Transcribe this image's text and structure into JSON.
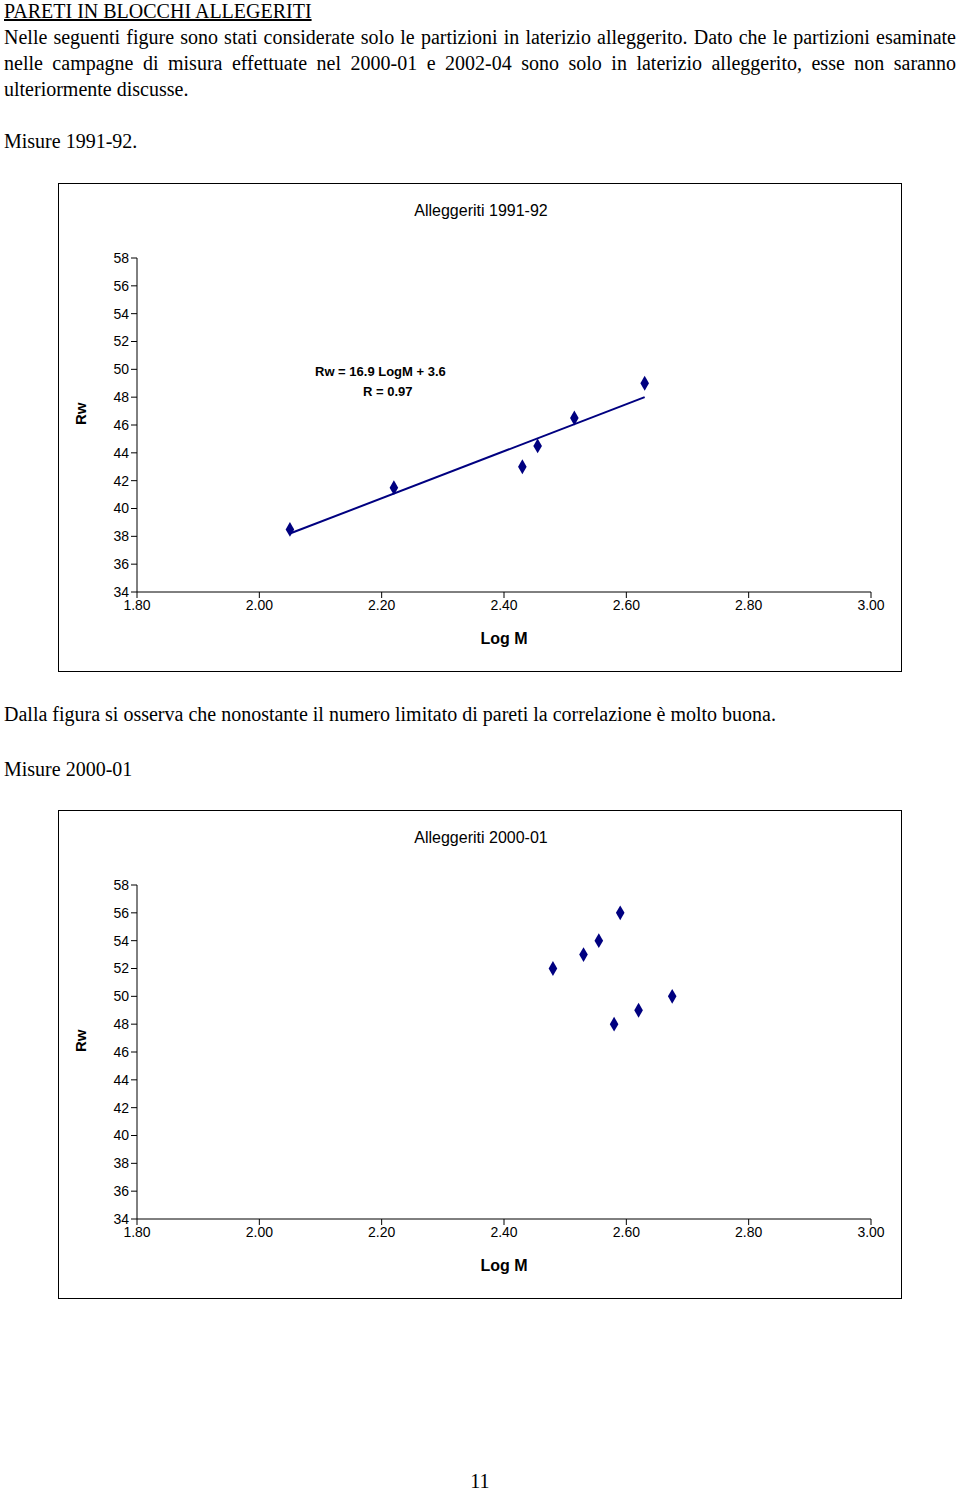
{
  "heading": "PARETI IN BLOCCHI ALLEGERITI",
  "intro": "Nelle seguenti figure sono stati considerate solo le partizioni in laterizio alleggerito. Dato che le partizioni esaminate nelle campagne di misura effettuate nel 2000-01 e 2002-04 sono solo in laterizio alleggerito, esse non saranno ulteriormente discusse.",
  "section_1": "Misure 1991-92.",
  "comment": "Dalla figura si osserva che nonostante il numero limitato di pareti la correlazione è molto buona.",
  "section_2": "Misure 2000-01",
  "page_number": "11",
  "chart_data": [
    {
      "type": "scatter",
      "title": "Alleggeriti 1991-92",
      "x_label": "Log M",
      "y_label": "Rw",
      "x": [
        2.05,
        2.22,
        2.43,
        2.455,
        2.515,
        2.63
      ],
      "values": [
        38.5,
        41.5,
        43,
        44.5,
        46.5,
        49
      ],
      "color": "#000080",
      "marker": "diamond",
      "xlim": [
        1.8,
        3.0
      ],
      "xticks": [
        {
          "value": 1.8,
          "label": "1.80"
        },
        {
          "value": 2.0,
          "label": "2.00"
        },
        {
          "value": 2.2,
          "label": "2.20"
        },
        {
          "value": 2.4,
          "label": "2.40"
        },
        {
          "value": 2.6,
          "label": "2.60"
        },
        {
          "value": 2.8,
          "label": "2.80"
        },
        {
          "value": 3.0,
          "label": "3.00"
        }
      ],
      "ylim": [
        34,
        58
      ],
      "yticks": [
        34,
        36,
        38,
        40,
        42,
        44,
        46,
        48,
        50,
        52,
        54,
        56,
        58
      ],
      "grid": false,
      "annotations": [
        "Rw = 16.9 LogM + 3.6",
        "R = 0.97"
      ],
      "trend_line": {
        "x": [
          2.05,
          2.63
        ],
        "values": [
          38.2,
          48.0
        ]
      }
    },
    {
      "type": "scatter",
      "title": "Alleggeriti 2000-01",
      "x_label": "Log M",
      "y_label": "Rw",
      "x": [
        2.48,
        2.53,
        2.555,
        2.59,
        2.58,
        2.62,
        2.675
      ],
      "values": [
        52,
        53,
        54,
        56,
        48,
        49,
        50
      ],
      "color": "#000080",
      "marker": "diamond",
      "xlim": [
        1.8,
        3.0
      ],
      "xticks": [
        {
          "value": 1.8,
          "label": "1.80"
        },
        {
          "value": 2.0,
          "label": "2.00"
        },
        {
          "value": 2.2,
          "label": "2.20"
        },
        {
          "value": 2.4,
          "label": "2.40"
        },
        {
          "value": 2.6,
          "label": "2.60"
        },
        {
          "value": 2.8,
          "label": "2.80"
        },
        {
          "value": 3.0,
          "label": "3.00"
        }
      ],
      "ylim": [
        34,
        58
      ],
      "yticks": [
        34,
        36,
        38,
        40,
        42,
        44,
        46,
        48,
        50,
        52,
        54,
        56,
        58
      ],
      "grid": false
    }
  ]
}
